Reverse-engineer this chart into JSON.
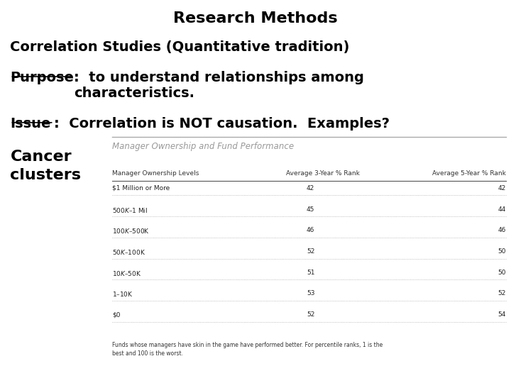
{
  "title": "Research Methods",
  "line1": "Correlation Studies (Quantitative tradition)",
  "line2_underline": "Purpose",
  "line2_rest": ":  to understand relationships among\ncharacteristics.",
  "line3_underline": "Issue",
  "line3_rest": ":  Correlation is NOT causation.  Examples?",
  "line4": "Cancer\nclusters",
  "table_title": "Manager Ownership and Fund Performance",
  "table_headers": [
    "Manager Ownership Levels",
    "Average 3-Year % Rank",
    "Average 5-Year % Rank"
  ],
  "table_rows": [
    [
      "$1 Million or More",
      "42",
      "42"
    ],
    [
      "$500K–$1 Mil",
      "45",
      "44"
    ],
    [
      "$100K–$500K",
      "46",
      "46"
    ],
    [
      "$50K–$100K",
      "52",
      "50"
    ],
    [
      "$10K–$50K",
      "51",
      "50"
    ],
    [
      "$1–$10K",
      "53",
      "52"
    ],
    [
      "$0",
      "52",
      "54"
    ]
  ],
  "footnote": "Funds whose managers have skin in the game have performed better. For percentile ranks, 1 is the\nbest and 100 is the worst.",
  "bg_color": "#ffffff",
  "text_color": "#000000",
  "table_title_color": "#999999",
  "table_header_color": "#333333",
  "table_row_color": "#222222"
}
